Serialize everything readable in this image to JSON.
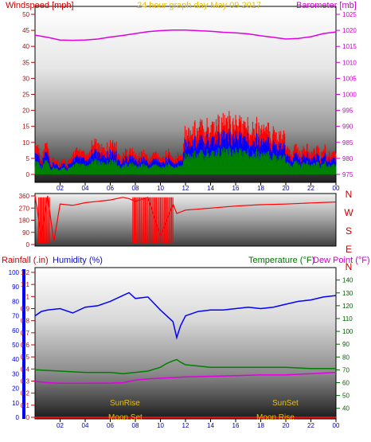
{
  "chart_data": [
    {
      "type": "line",
      "title": "24 hour graph day   May 09 2017",
      "ylabel_left": "Windspeed [mph]",
      "ylabel_right": "Barometer [mb]",
      "x_ticks": [
        "02",
        "04",
        "06",
        "08",
        "10",
        "12",
        "14",
        "16",
        "18",
        "20",
        "22",
        "00"
      ],
      "y_left_ticks": [
        "0",
        "5",
        "10",
        "15",
        "20",
        "25",
        "30",
        "35",
        "40",
        "45",
        "50"
      ],
      "y_left_range": [
        0,
        50
      ],
      "y_right_ticks": [
        "975",
        "980",
        "985",
        "990",
        "995",
        "1000",
        "1005",
        "1010",
        "1015",
        "1020",
        "1025"
      ],
      "y_right_range": [
        975,
        1025
      ],
      "colors": {
        "gust": "#ff0000",
        "avg": "#0000ff",
        "speed": "#008000",
        "barometer": "#e000e0",
        "title": "#e8c000"
      },
      "series": [
        {
          "name": "Barometer",
          "axis": "right",
          "x": [
            0,
            1,
            2,
            3,
            4,
            5,
            6,
            7,
            8,
            9,
            10,
            11,
            12,
            13,
            14,
            15,
            16,
            17,
            18,
            19,
            20,
            21,
            22,
            23,
            24
          ],
          "values": [
            1018.5,
            1017.8,
            1017.0,
            1016.9,
            1017.0,
            1017.3,
            1017.9,
            1018.4,
            1019.0,
            1019.6,
            1019.9,
            1020.1,
            1020.1,
            1019.9,
            1019.7,
            1019.4,
            1019.2,
            1018.9,
            1018.3,
            1017.8,
            1017.3,
            1017.5,
            1018.0,
            1019.0,
            1019.5
          ]
        }
      ]
    },
    {
      "type": "line",
      "y_right_labels": [
        "N",
        "W",
        "S",
        "E",
        "N"
      ],
      "y_left_ticks": [
        "0",
        "90",
        "180",
        "270",
        "360"
      ],
      "y_left_range": [
        0,
        360
      ],
      "series": [
        {
          "name": "Wind direction",
          "x": [
            0,
            0.5,
            1,
            1.5,
            2,
            3,
            4,
            5,
            6,
            7,
            7.5,
            8,
            9,
            10,
            11,
            11.3,
            12,
            14,
            16,
            18,
            20,
            22,
            24
          ],
          "values": [
            360,
            60,
            360,
            20,
            300,
            290,
            310,
            320,
            330,
            350,
            340,
            320,
            350,
            60,
            300,
            230,
            255,
            270,
            285,
            295,
            300,
            308,
            315
          ]
        }
      ]
    },
    {
      "type": "line",
      "ylabel_left_1": "Rainfall (.in)",
      "ylabel_left_2": "Humidity (%)",
      "ylabel_right_1": "Temperature (°F)",
      "ylabel_right_2": "Dew Point (°F)",
      "x_ticks": [
        "02",
        "04",
        "06",
        "08",
        "10",
        "12",
        "14",
        "16",
        "18",
        "20",
        "22",
        "00"
      ],
      "humidity_ticks": [
        "0",
        "10",
        "20",
        "30",
        "40",
        "50",
        "60",
        "70",
        "80",
        "90",
        "100"
      ],
      "humidity_range": [
        0,
        100
      ],
      "rain_ticks": [
        "0",
        "0.1",
        "0.2",
        "0.3",
        "0.4",
        "0.5",
        "0.6",
        "0.7",
        "0.8",
        "0.9",
        "1",
        "1.1",
        "1.2"
      ],
      "rain_range": [
        0,
        1.2
      ],
      "temp_ticks": [
        "40",
        "50",
        "60",
        "70",
        "80",
        "90",
        "100",
        "110",
        "120",
        "130",
        "140"
      ],
      "temp_range": [
        33,
        146
      ],
      "annotations": [
        {
          "text": "SunRise",
          "x": 7.2
        },
        {
          "text": "Moon Set",
          "x": 7.2
        },
        {
          "text": "SunSet",
          "x": 20.1
        },
        {
          "text": "Moon Rise",
          "x": 20.1
        }
      ],
      "colors": {
        "humidity": "#0000ff",
        "temperature": "#008000",
        "dewpoint": "#e000e0",
        "rainfall": "#ff0000",
        "sun": "#e8c000"
      },
      "series": [
        {
          "name": "Humidity",
          "x": [
            0,
            0.5,
            1,
            2,
            3,
            4,
            5,
            6,
            7,
            7.5,
            8,
            9,
            10,
            10.5,
            11,
            11.3,
            11.6,
            12,
            13,
            14,
            15,
            16,
            17,
            18,
            19,
            20,
            21,
            22,
            23,
            24
          ],
          "values": [
            70,
            73,
            74,
            75,
            72,
            76,
            77,
            80,
            84,
            86,
            82,
            83,
            74,
            70,
            66,
            55,
            63,
            70,
            73,
            74,
            74,
            75,
            76,
            75,
            76,
            78,
            80,
            81,
            83,
            84
          ]
        },
        {
          "name": "Temperature",
          "x": [
            0,
            2,
            4,
            6,
            7,
            8,
            9,
            10,
            10.5,
            11,
            11.3,
            11.6,
            12,
            13,
            14,
            16,
            18,
            20,
            22,
            24
          ],
          "values": [
            70,
            69,
            68,
            68,
            67,
            68,
            69,
            72,
            75,
            77,
            78,
            76,
            74,
            73,
            72,
            72,
            72,
            72,
            71,
            71
          ]
        },
        {
          "name": "Dew Point",
          "x": [
            0,
            1,
            2,
            4,
            6,
            7,
            8,
            9,
            10,
            11,
            12,
            14,
            16,
            18,
            20,
            22,
            24
          ],
          "values": [
            61,
            60,
            59.5,
            59.5,
            59.7,
            60,
            62,
            63,
            63.5,
            64,
            64.5,
            65,
            65.5,
            66,
            66,
            67,
            68
          ]
        },
        {
          "name": "Rainfall",
          "x": [
            0,
            24
          ],
          "values": [
            0,
            0
          ]
        }
      ]
    }
  ]
}
